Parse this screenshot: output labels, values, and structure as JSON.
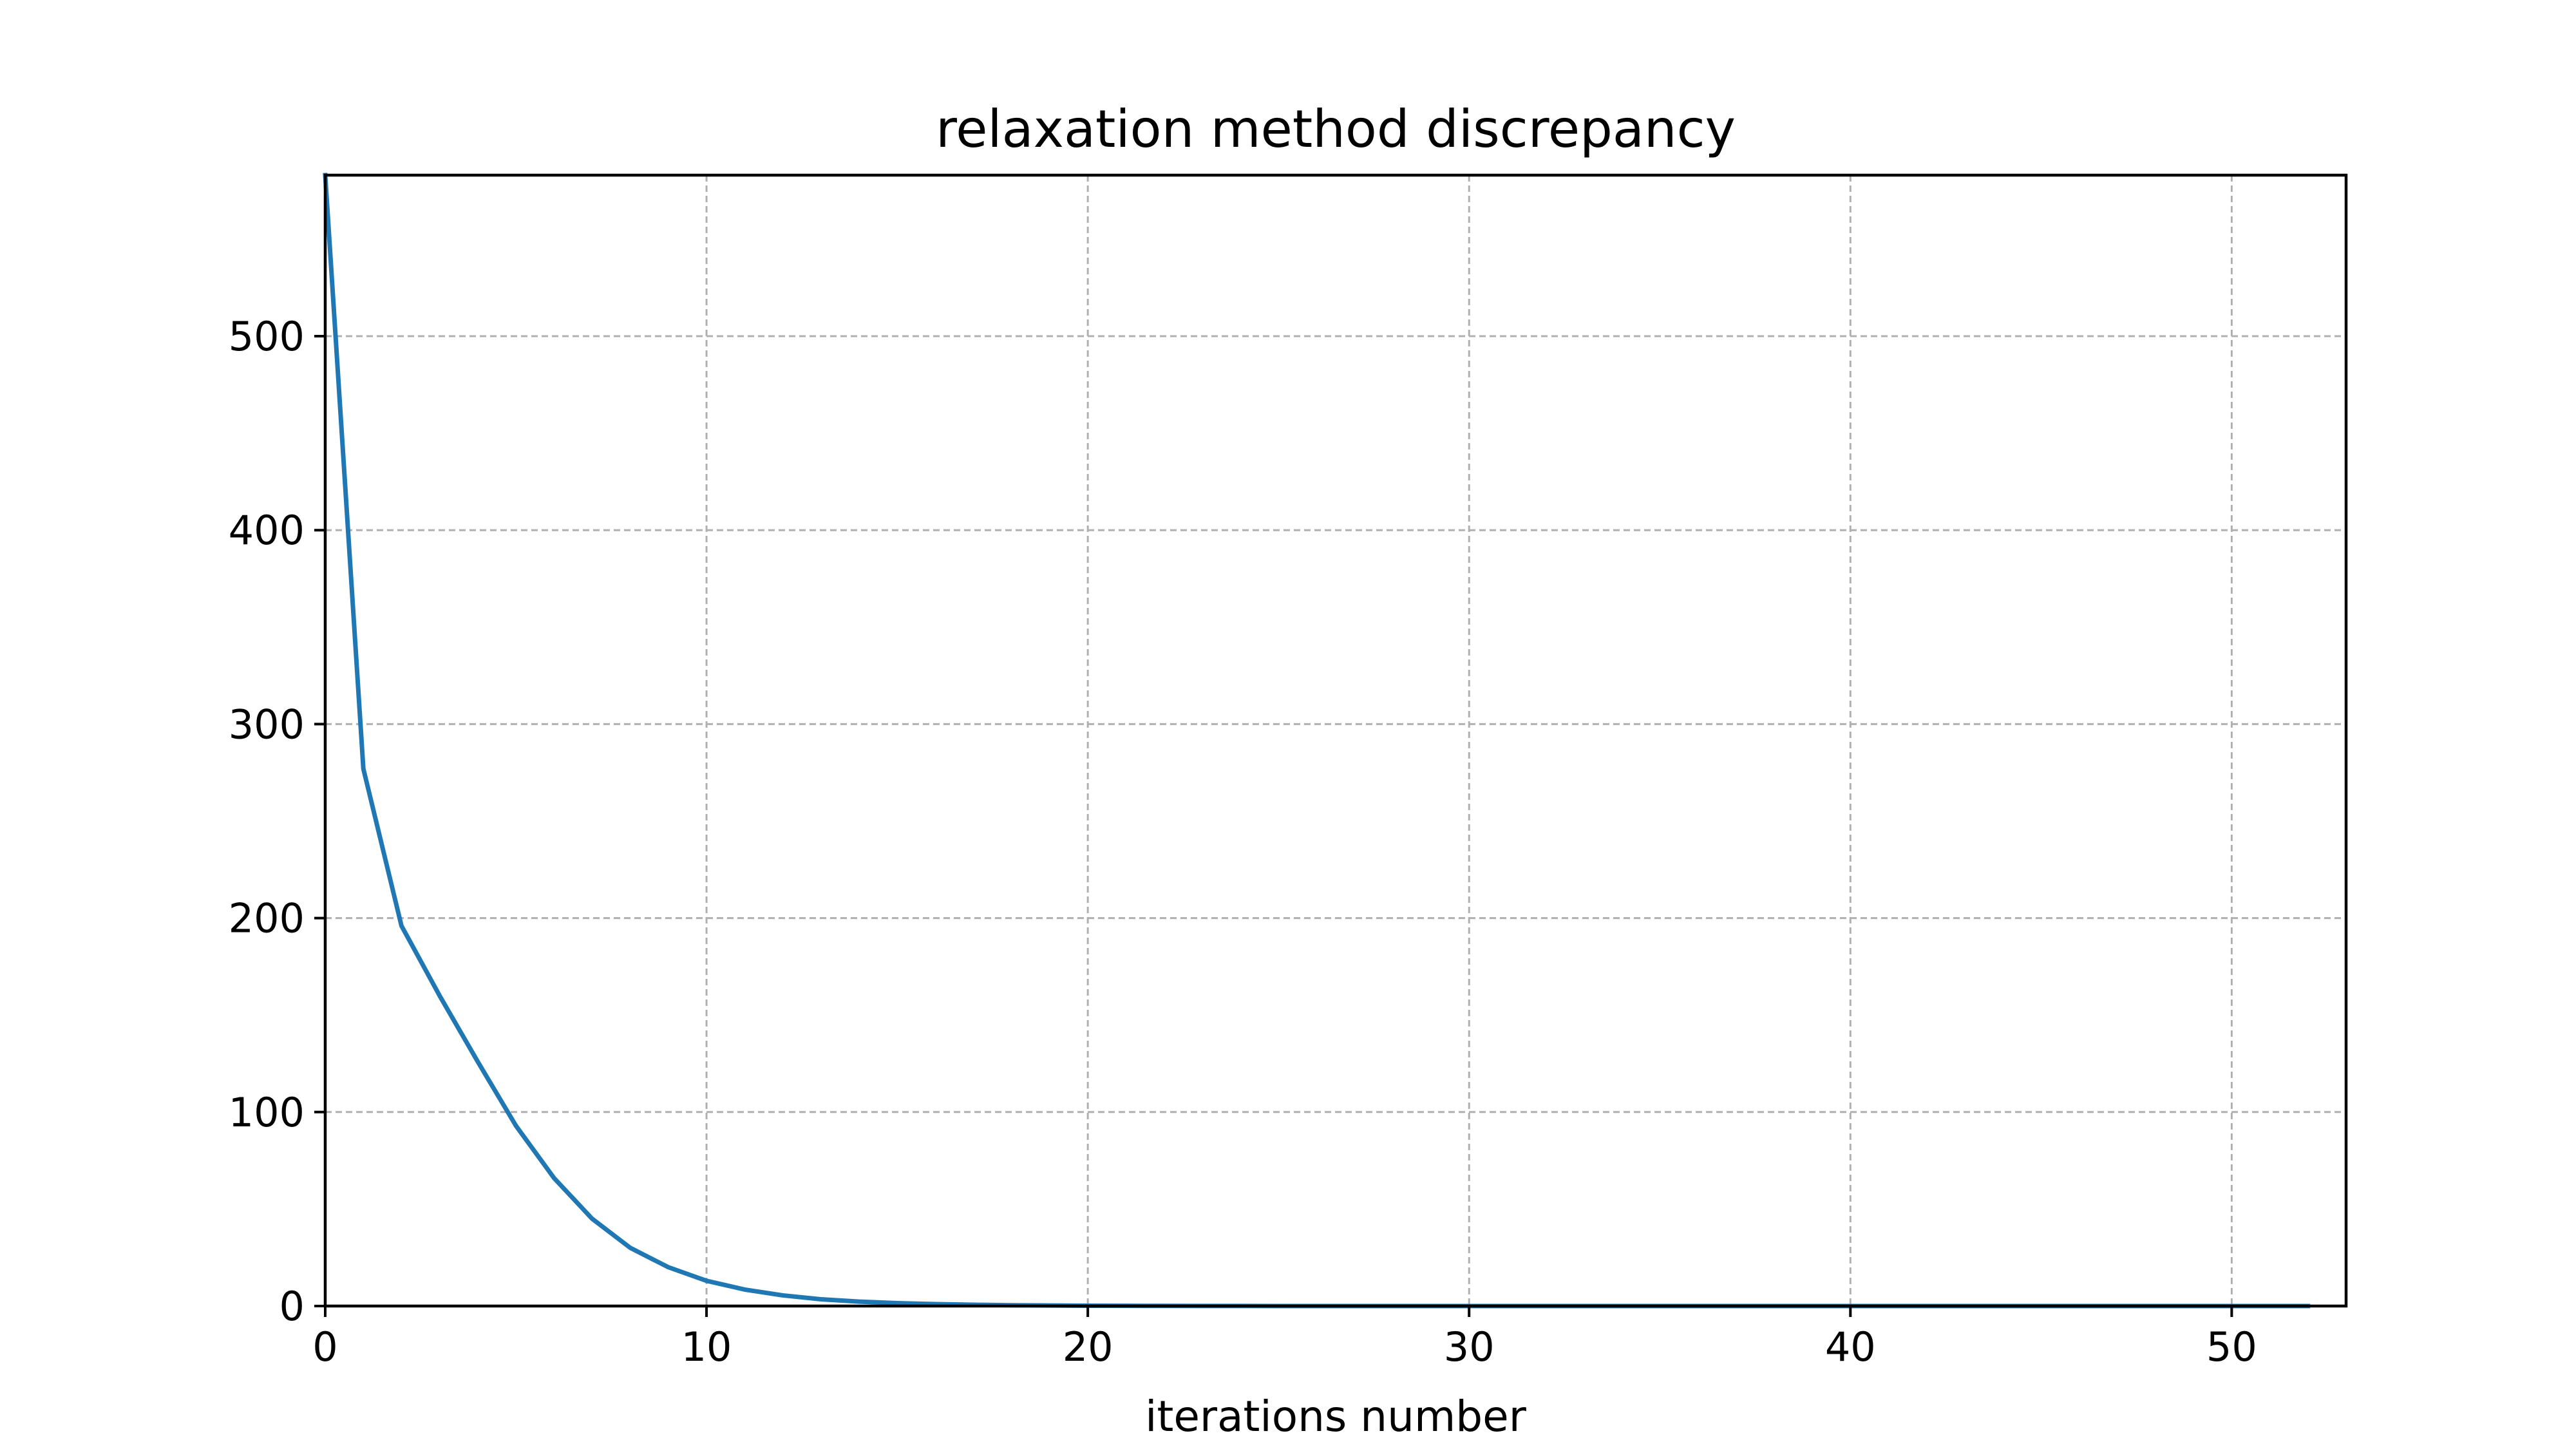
{
  "chart_data": {
    "type": "line",
    "title": "relaxation method discrepancy",
    "xlabel": "iterations number",
    "ylabel": "",
    "xlim": [
      0,
      53
    ],
    "ylim": [
      0,
      583
    ],
    "x_ticks": [
      0,
      10,
      20,
      30,
      40,
      50
    ],
    "y_ticks": [
      0,
      100,
      200,
      300,
      400,
      500
    ],
    "grid": true,
    "series_color": "#1f77b4",
    "series": [
      {
        "x": [
          0,
          1,
          2,
          3,
          4,
          5,
          6,
          7,
          8,
          9,
          10,
          11,
          12,
          13,
          14,
          15,
          16,
          17,
          18,
          19,
          20,
          21,
          22,
          23,
          24,
          25,
          26,
          27,
          28,
          29,
          30,
          31,
          32,
          33,
          34,
          35,
          36,
          37,
          38,
          39,
          40,
          41,
          42,
          43,
          44,
          45,
          46,
          47,
          48,
          49,
          50,
          51,
          52
        ],
        "values": [
          583,
          277,
          196,
          160,
          126,
          93,
          66,
          45,
          30,
          20,
          13,
          8.5,
          5.5,
          3.5,
          2.3,
          1.5,
          1.0,
          0.65,
          0.42,
          0.28,
          0.18,
          0.12,
          0.08,
          0.05,
          0.03,
          0.02,
          0.013,
          0.009,
          0.006,
          0.004,
          0.0025,
          0.0016,
          0.001,
          0.0007,
          0.0004,
          0.0003,
          0.0002,
          0.0001,
          0.0001,
          0,
          0,
          0,
          0,
          0,
          0,
          0,
          0,
          0,
          0,
          0,
          0,
          0,
          0
        ]
      }
    ]
  }
}
